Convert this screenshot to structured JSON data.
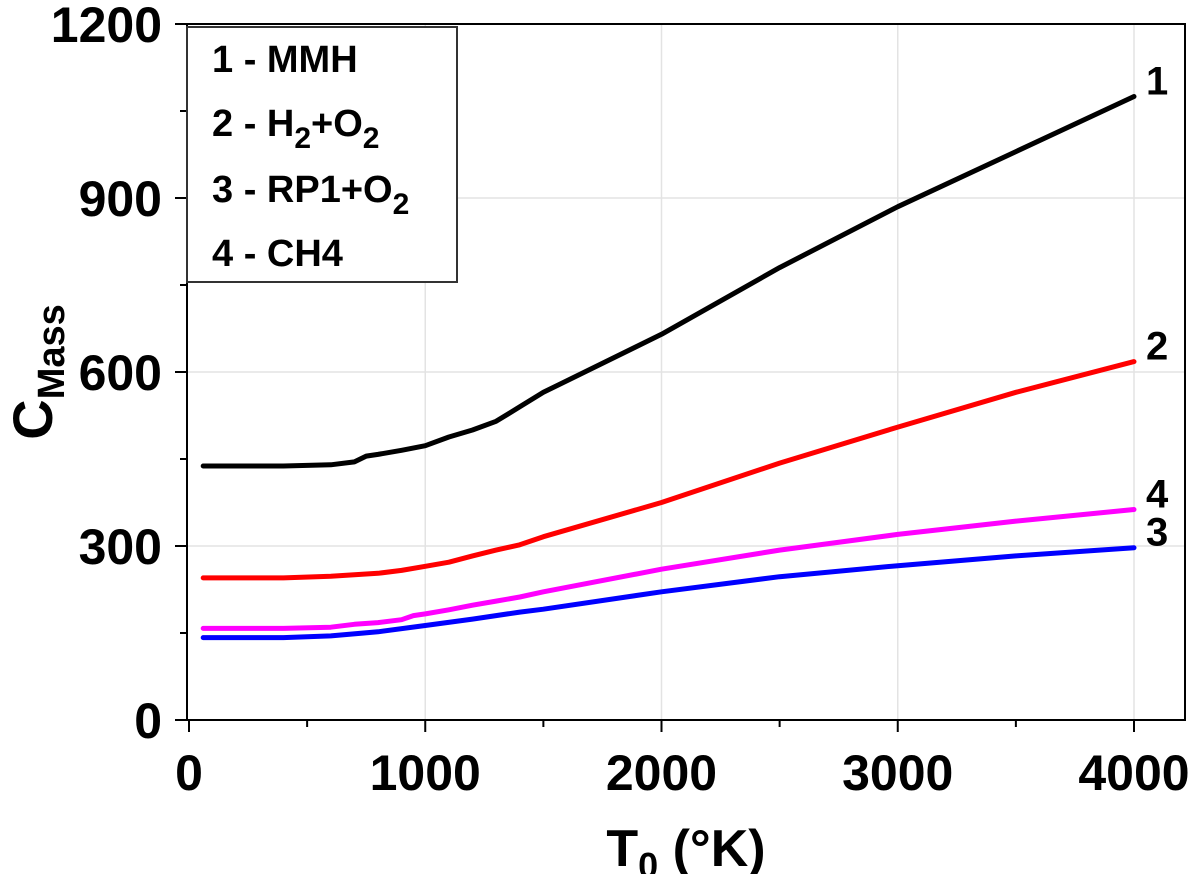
{
  "chart_data": {
    "type": "line",
    "xlabel_main": "T",
    "xlabel_sub": "0",
    "xlabel_unit": " (°K)",
    "ylabel_main": "C",
    "ylabel_sub": "Mass",
    "xlim": [
      0,
      4000
    ],
    "ylim": [
      0,
      1200
    ],
    "xticks": [
      0,
      1000,
      2000,
      3000,
      4000
    ],
    "yticks": [
      0,
      300,
      600,
      900,
      1200
    ],
    "grid": true,
    "legend_position": "top-left",
    "legend": [
      {
        "num": "1 - ",
        "name": "MMH"
      },
      {
        "num": "2 - ",
        "name": "H",
        "sub1": "2",
        "mid": "+O",
        "sub2": "2"
      },
      {
        "num": "3 - ",
        "name": "RP1+O",
        "sub1": "2"
      },
      {
        "num": "4 - ",
        "name": "CH4"
      }
    ],
    "series": [
      {
        "name": "1",
        "color": "#000000",
        "x": [
          60,
          200,
          400,
          600,
          700,
          750,
          800,
          900,
          1000,
          1100,
          1200,
          1300,
          1400,
          1500,
          2000,
          2500,
          3000,
          3500,
          4000
        ],
        "y": [
          438,
          438,
          438,
          440,
          445,
          455,
          458,
          465,
          473,
          488,
          500,
          515,
          540,
          565,
          665,
          780,
          885,
          980,
          1075
        ]
      },
      {
        "name": "2",
        "color": "#ff0000",
        "x": [
          60,
          200,
          400,
          600,
          800,
          900,
          1000,
          1100,
          1200,
          1300,
          1400,
          1500,
          2000,
          2500,
          3000,
          3500,
          4000
        ],
        "y": [
          245,
          245,
          245,
          248,
          253,
          258,
          265,
          272,
          283,
          293,
          302,
          316,
          375,
          443,
          505,
          565,
          618
        ]
      },
      {
        "name": "3",
        "color": "#0000ff",
        "x": [
          60,
          200,
          400,
          600,
          800,
          1000,
          1200,
          1400,
          1500,
          2000,
          2500,
          3000,
          3500,
          4000
        ],
        "y": [
          142,
          142,
          142,
          145,
          152,
          163,
          174,
          186,
          191,
          221,
          247,
          266,
          283,
          297
        ]
      },
      {
        "name": "4",
        "color": "#ff00ff",
        "x": [
          60,
          200,
          400,
          600,
          700,
          800,
          900,
          950,
          1000,
          1100,
          1200,
          1300,
          1400,
          1500,
          2000,
          2500,
          3000,
          3500,
          4000
        ],
        "y": [
          158,
          158,
          158,
          160,
          165,
          168,
          173,
          180,
          183,
          190,
          198,
          205,
          212,
          221,
          260,
          293,
          320,
          343,
          363
        ]
      }
    ]
  }
}
